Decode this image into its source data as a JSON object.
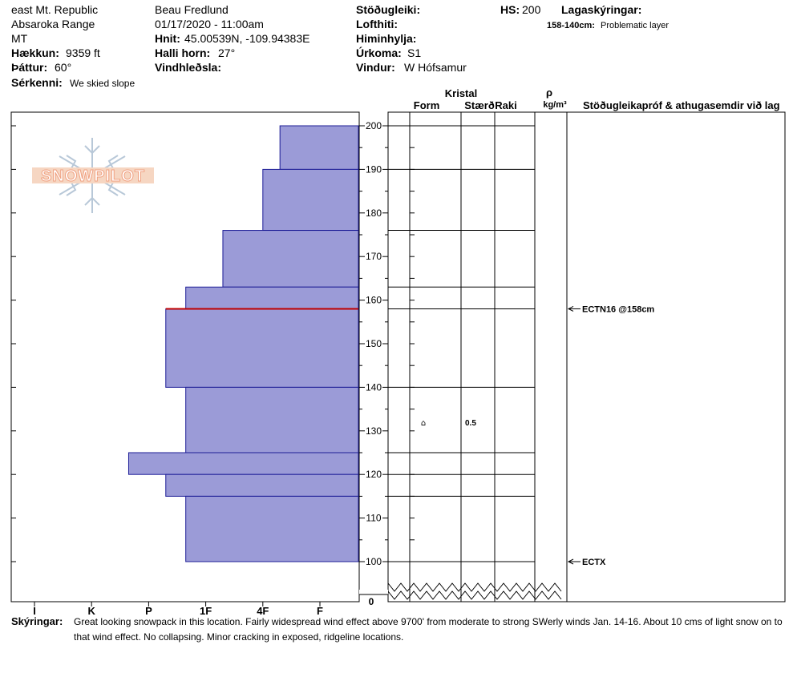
{
  "header": {
    "location_line1": "east Mt. Republic",
    "location_line2": "Absaroka Range",
    "location_line3": "MT",
    "elevation_label": "Hækkun:",
    "elevation_value": "9359 ft",
    "aspect_label": "Þáttur:",
    "aspect_value": "60°",
    "features_label": "Sérkenni:",
    "features_value": "We skied slope",
    "observer": "Beau  Fredlund",
    "datetime": "01/17/2020 - 11:00am",
    "coords_label": "Hnit:",
    "coords_value": "45.00539N, -109.94383E",
    "slope_label": "Halli horn:",
    "slope_value": "27°",
    "wind_loading_label": "Vindhleðsla:",
    "stability_label": "Stöðugleiki:",
    "air_temp_label": "Lofthiti:",
    "sky_label": "Himinhylja:",
    "precip_label": "Úrkoma:",
    "precip_value": "S1",
    "wind_label": "Vindur:",
    "wind_value": "W Hófsamur",
    "hs_label": "HS:",
    "hs_value": "200",
    "legend_title": "Lagaskýringar:",
    "legend_range": "158-140cm:",
    "legend_text": "Problematic layer"
  },
  "logo": {
    "text": "SNOWPILOT"
  },
  "table": {
    "crystal_header": "Kristal",
    "form_header": "Form",
    "size_header": "Stærð",
    "moisture_header": "Raki",
    "density_symbol": "ρ",
    "density_unit": "kg/m³",
    "tests_header": "Stöðugleikapróf & athugasemdir við lag",
    "crystal_form_symbol": "⌂",
    "crystal_size": "0.5"
  },
  "notes": {
    "label": "Skýringar:",
    "line1": "Great looking snowpack in this location.  Fairly widespread wind effect above 9700' from moderate to strong SWerly winds Jan. 14-16.  About 10 cms of light snow on to",
    "line2": "that wind effect.  No collapsing.  Minor cracking in exposed, ridgeline locations."
  },
  "colors": {
    "hardness_fill": "#9b9bd7",
    "hardness_stroke": "#1c1c96",
    "problem_layer": "#c00000",
    "logo": "#f0a080"
  },
  "chart_data": {
    "type": "bar",
    "title": "",
    "xlabel": "",
    "ylabel": "",
    "hardness_ticks": [
      "I",
      "K",
      "P",
      "1F",
      "4F",
      "F"
    ],
    "ylim": [
      100,
      200
    ],
    "y_ticks": [
      0,
      100,
      110,
      120,
      130,
      140,
      150,
      160,
      170,
      180,
      190,
      200
    ],
    "axis_break": true,
    "hardness_index_scale": "F=0, 4F=1, 1F=2, P=3, K=4, I=5",
    "layers": [
      {
        "top": 200,
        "bottom": 190,
        "hardness": 0.7
      },
      {
        "top": 190,
        "bottom": 176,
        "hardness": 1.0
      },
      {
        "top": 176,
        "bottom": 163,
        "hardness": 1.7
      },
      {
        "top": 163,
        "bottom": 158,
        "hardness": 2.35
      },
      {
        "top": 158,
        "bottom": 140,
        "hardness": 2.7
      },
      {
        "top": 140,
        "bottom": 125,
        "hardness": 2.35
      },
      {
        "top": 125,
        "bottom": 120,
        "hardness": 3.35
      },
      {
        "top": 120,
        "bottom": 115,
        "hardness": 2.7
      },
      {
        "top": 115,
        "bottom": 100,
        "hardness": 2.35
      }
    ],
    "problem_layer_top": 158,
    "table_layer_lines": [
      200,
      190,
      176,
      163,
      158,
      140,
      125,
      120,
      115,
      100
    ],
    "crystal_row_height": 132,
    "tests": [
      {
        "height": 158,
        "label": "ECTN16 @158cm"
      },
      {
        "height": 100,
        "label": "ECTX"
      }
    ]
  }
}
